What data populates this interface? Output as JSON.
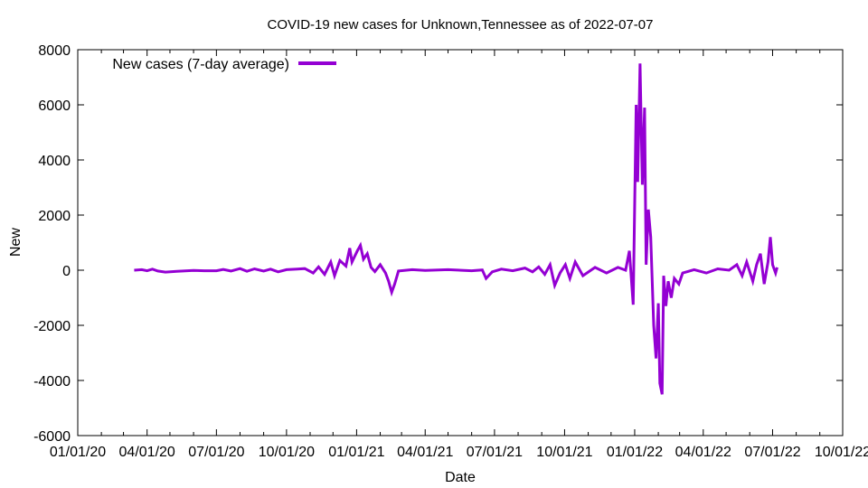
{
  "chart_data": {
    "type": "line",
    "title": "COVID-19 new cases for Unknown,Tennessee as of 2022-07-07",
    "xlabel": "Date",
    "ylabel": "New",
    "xlim": [
      "2020-01-01",
      "2022-10-01"
    ],
    "ylim": [
      -6000,
      8000
    ],
    "x_ticks": [
      "01/01/20",
      "04/01/20",
      "07/01/20",
      "10/01/20",
      "01/01/21",
      "04/01/21",
      "07/01/21",
      "10/01/21",
      "01/01/22",
      "04/01/22",
      "07/01/22",
      "10/01/22"
    ],
    "y_ticks": [
      "-6000",
      "-4000",
      "-2000",
      "0",
      "2000",
      "4000",
      "6000",
      "8000"
    ],
    "legend_position": "top-left",
    "grid": false,
    "series": [
      {
        "name": "New cases (7-day average)",
        "color": "#9400d3",
        "points": [
          [
            "2020-03-15",
            0
          ],
          [
            "2020-03-25",
            20
          ],
          [
            "2020-04-01",
            -20
          ],
          [
            "2020-04-08",
            40
          ],
          [
            "2020-04-15",
            -30
          ],
          [
            "2020-04-25",
            -70
          ],
          [
            "2020-05-10",
            -40
          ],
          [
            "2020-06-01",
            -10
          ],
          [
            "2020-06-15",
            -20
          ],
          [
            "2020-07-01",
            -20
          ],
          [
            "2020-07-10",
            30
          ],
          [
            "2020-07-20",
            -30
          ],
          [
            "2020-08-01",
            60
          ],
          [
            "2020-08-10",
            -40
          ],
          [
            "2020-08-20",
            50
          ],
          [
            "2020-09-01",
            -30
          ],
          [
            "2020-09-10",
            40
          ],
          [
            "2020-09-20",
            -60
          ],
          [
            "2020-10-01",
            20
          ],
          [
            "2020-10-15",
            40
          ],
          [
            "2020-10-25",
            60
          ],
          [
            "2020-11-05",
            -100
          ],
          [
            "2020-11-12",
            120
          ],
          [
            "2020-11-20",
            -150
          ],
          [
            "2020-11-28",
            300
          ],
          [
            "2020-12-03",
            -200
          ],
          [
            "2020-12-10",
            350
          ],
          [
            "2020-12-18",
            150
          ],
          [
            "2020-12-23",
            800
          ],
          [
            "2020-12-26",
            300
          ],
          [
            "2021-01-02",
            700
          ],
          [
            "2021-01-06",
            900
          ],
          [
            "2021-01-10",
            400
          ],
          [
            "2021-01-15",
            600
          ],
          [
            "2021-01-20",
            100
          ],
          [
            "2021-01-25",
            -50
          ],
          [
            "2021-02-01",
            200
          ],
          [
            "2021-02-08",
            -100
          ],
          [
            "2021-02-12",
            -400
          ],
          [
            "2021-02-16",
            -800
          ],
          [
            "2021-02-20",
            -500
          ],
          [
            "2021-02-25",
            -30
          ],
          [
            "2021-03-15",
            20
          ],
          [
            "2021-04-01",
            -10
          ],
          [
            "2021-05-01",
            20
          ],
          [
            "2021-06-01",
            -20
          ],
          [
            "2021-06-15",
            10
          ],
          [
            "2021-06-20",
            -300
          ],
          [
            "2021-06-28",
            -60
          ],
          [
            "2021-07-10",
            40
          ],
          [
            "2021-07-25",
            -20
          ],
          [
            "2021-08-10",
            80
          ],
          [
            "2021-08-20",
            -60
          ],
          [
            "2021-08-28",
            120
          ],
          [
            "2021-09-05",
            -150
          ],
          [
            "2021-09-12",
            200
          ],
          [
            "2021-09-18",
            -550
          ],
          [
            "2021-09-25",
            -100
          ],
          [
            "2021-10-02",
            200
          ],
          [
            "2021-10-08",
            -300
          ],
          [
            "2021-10-15",
            300
          ],
          [
            "2021-10-25",
            -200
          ],
          [
            "2021-11-10",
            100
          ],
          [
            "2021-11-25",
            -100
          ],
          [
            "2021-12-10",
            100
          ],
          [
            "2021-12-20",
            0
          ],
          [
            "2021-12-25",
            700
          ],
          [
            "2021-12-30",
            -1250
          ],
          [
            "2022-01-03",
            6000
          ],
          [
            "2022-01-05",
            3200
          ],
          [
            "2022-01-08",
            7500
          ],
          [
            "2022-01-11",
            3100
          ],
          [
            "2022-01-14",
            5900
          ],
          [
            "2022-01-16",
            200
          ],
          [
            "2022-01-19",
            2200
          ],
          [
            "2022-01-22",
            1200
          ],
          [
            "2022-01-26",
            -2000
          ],
          [
            "2022-01-29",
            -3200
          ],
          [
            "2022-02-01",
            -1200
          ],
          [
            "2022-02-03",
            -4100
          ],
          [
            "2022-02-06",
            -4500
          ],
          [
            "2022-02-08",
            -200
          ],
          [
            "2022-02-11",
            -1300
          ],
          [
            "2022-02-14",
            -400
          ],
          [
            "2022-02-18",
            -1000
          ],
          [
            "2022-02-22",
            -300
          ],
          [
            "2022-02-28",
            -500
          ],
          [
            "2022-03-05",
            -100
          ],
          [
            "2022-03-20",
            20
          ],
          [
            "2022-04-05",
            -100
          ],
          [
            "2022-04-20",
            50
          ],
          [
            "2022-05-05",
            0
          ],
          [
            "2022-05-15",
            200
          ],
          [
            "2022-05-22",
            -200
          ],
          [
            "2022-05-28",
            300
          ],
          [
            "2022-06-05",
            -400
          ],
          [
            "2022-06-10",
            200
          ],
          [
            "2022-06-15",
            600
          ],
          [
            "2022-06-20",
            -500
          ],
          [
            "2022-06-25",
            300
          ],
          [
            "2022-06-28",
            1200
          ],
          [
            "2022-07-01",
            200
          ],
          [
            "2022-07-05",
            -100
          ],
          [
            "2022-07-07",
            100
          ]
        ]
      }
    ]
  }
}
